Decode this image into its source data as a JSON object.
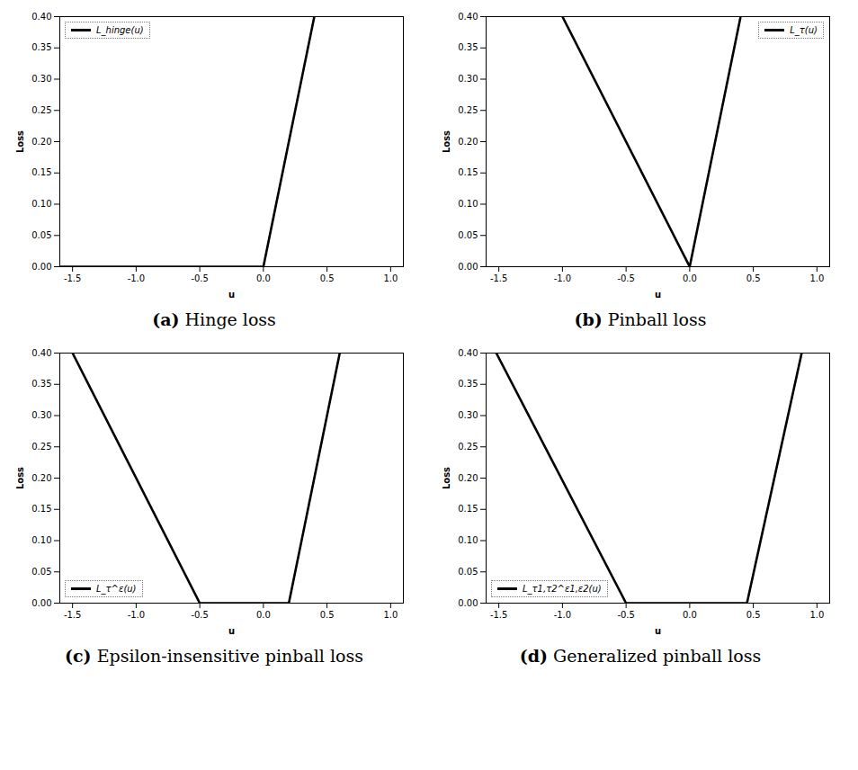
{
  "chart_data": [
    {
      "type": "line",
      "title": "(a) Hinge loss",
      "x_label": "u",
      "y_label": "Loss",
      "x": [
        -1.6,
        0.0,
        0.4
      ],
      "series": [
        {
          "name": "L_hinge(u)",
          "color": "#000000",
          "values": [
            0.0,
            0.0,
            0.4
          ]
        }
      ],
      "legend": "upper left",
      "grid": false,
      "xlim": [
        -1.6,
        1.1
      ],
      "xticks": [
        {
          "value": -1.5,
          "label": "-1.5"
        },
        {
          "value": -1.0,
          "label": "-1.0"
        },
        {
          "value": -0.5,
          "label": "-0.5"
        },
        {
          "value": 0.0,
          "label": "0.0"
        },
        {
          "value": 0.5,
          "label": "0.5"
        },
        {
          "value": 1.0,
          "label": "1.0"
        }
      ],
      "ylim": [
        0.0,
        0.4
      ],
      "yticks": [
        {
          "value": 0.0,
          "label": "0.00"
        },
        {
          "value": 0.05,
          "label": "0.05"
        },
        {
          "value": 0.1,
          "label": "0.10"
        },
        {
          "value": 0.15,
          "label": "0.15"
        },
        {
          "value": 0.2,
          "label": "0.20"
        },
        {
          "value": 0.25,
          "label": "0.25"
        },
        {
          "value": 0.3,
          "label": "0.30"
        },
        {
          "value": 0.35,
          "label": "0.35"
        },
        {
          "value": 0.4,
          "label": "0.40"
        }
      ]
    },
    {
      "type": "line",
      "title": "(b) Pinball loss",
      "x_label": "u",
      "y_label": "Loss",
      "x": [
        -1.0,
        0.0,
        0.4
      ],
      "series": [
        {
          "name": "L_τ(u)",
          "color": "#000000",
          "values": [
            0.4,
            0.0,
            0.4
          ]
        }
      ],
      "legend": "upper right",
      "grid": false,
      "xlim": [
        -1.6,
        1.1
      ],
      "xticks": [
        {
          "value": -1.5,
          "label": "-1.5"
        },
        {
          "value": -1.0,
          "label": "-1.0"
        },
        {
          "value": -0.5,
          "label": "-0.5"
        },
        {
          "value": 0.0,
          "label": "0.0"
        },
        {
          "value": 0.5,
          "label": "0.5"
        },
        {
          "value": 1.0,
          "label": "1.0"
        }
      ],
      "ylim": [
        0.0,
        0.4
      ],
      "yticks": [
        {
          "value": 0.0,
          "label": "0.00"
        },
        {
          "value": 0.05,
          "label": "0.05"
        },
        {
          "value": 0.1,
          "label": "0.10"
        },
        {
          "value": 0.15,
          "label": "0.15"
        },
        {
          "value": 0.2,
          "label": "0.20"
        },
        {
          "value": 0.25,
          "label": "0.25"
        },
        {
          "value": 0.3,
          "label": "0.30"
        },
        {
          "value": 0.35,
          "label": "0.35"
        },
        {
          "value": 0.4,
          "label": "0.40"
        }
      ]
    },
    {
      "type": "line",
      "title": "(c) Epsilon-insensitive pinball loss",
      "x_label": "u",
      "y_label": "Loss",
      "x": [
        -1.5,
        -0.5,
        0.2,
        0.6
      ],
      "series": [
        {
          "name": "L_τ^ε(u)",
          "color": "#000000",
          "values": [
            0.4,
            0.0,
            0.0,
            0.4
          ]
        }
      ],
      "legend": "lower left",
      "grid": false,
      "xlim": [
        -1.6,
        1.1
      ],
      "xticks": [
        {
          "value": -1.5,
          "label": "-1.5"
        },
        {
          "value": -1.0,
          "label": "-1.0"
        },
        {
          "value": -0.5,
          "label": "-0.5"
        },
        {
          "value": 0.0,
          "label": "0.0"
        },
        {
          "value": 0.5,
          "label": "0.5"
        },
        {
          "value": 1.0,
          "label": "1.0"
        }
      ],
      "ylim": [
        0.0,
        0.4
      ],
      "yticks": [
        {
          "value": 0.0,
          "label": "0.00"
        },
        {
          "value": 0.05,
          "label": "0.05"
        },
        {
          "value": 0.1,
          "label": "0.10"
        },
        {
          "value": 0.15,
          "label": "0.15"
        },
        {
          "value": 0.2,
          "label": "0.20"
        },
        {
          "value": 0.25,
          "label": "0.25"
        },
        {
          "value": 0.3,
          "label": "0.30"
        },
        {
          "value": 0.35,
          "label": "0.35"
        },
        {
          "value": 0.4,
          "label": "0.40"
        }
      ]
    },
    {
      "type": "line",
      "title": "(d) Generalized pinball loss",
      "x_label": "u",
      "y_label": "Loss",
      "x": [
        -1.52,
        -0.5,
        0.45,
        0.88
      ],
      "series": [
        {
          "name": "L_τ1,τ2^ε1,ε2(u)",
          "color": "#000000",
          "values": [
            0.4,
            0.0,
            0.0,
            0.4
          ]
        }
      ],
      "legend": "lower left",
      "grid": false,
      "xlim": [
        -1.6,
        1.1
      ],
      "xticks": [
        {
          "value": -1.5,
          "label": "-1.5"
        },
        {
          "value": -1.0,
          "label": "-1.0"
        },
        {
          "value": -0.5,
          "label": "-0.5"
        },
        {
          "value": 0.0,
          "label": "0.0"
        },
        {
          "value": 0.5,
          "label": "0.5"
        },
        {
          "value": 1.0,
          "label": "1.0"
        }
      ],
      "ylim": [
        0.0,
        0.4
      ],
      "yticks": [
        {
          "value": 0.0,
          "label": "0.00"
        },
        {
          "value": 0.05,
          "label": "0.05"
        },
        {
          "value": 0.1,
          "label": "0.10"
        },
        {
          "value": 0.15,
          "label": "0.15"
        },
        {
          "value": 0.2,
          "label": "0.20"
        },
        {
          "value": 0.25,
          "label": "0.25"
        },
        {
          "value": 0.3,
          "label": "0.30"
        },
        {
          "value": 0.35,
          "label": "0.35"
        },
        {
          "value": 0.4,
          "label": "0.40"
        }
      ]
    }
  ]
}
